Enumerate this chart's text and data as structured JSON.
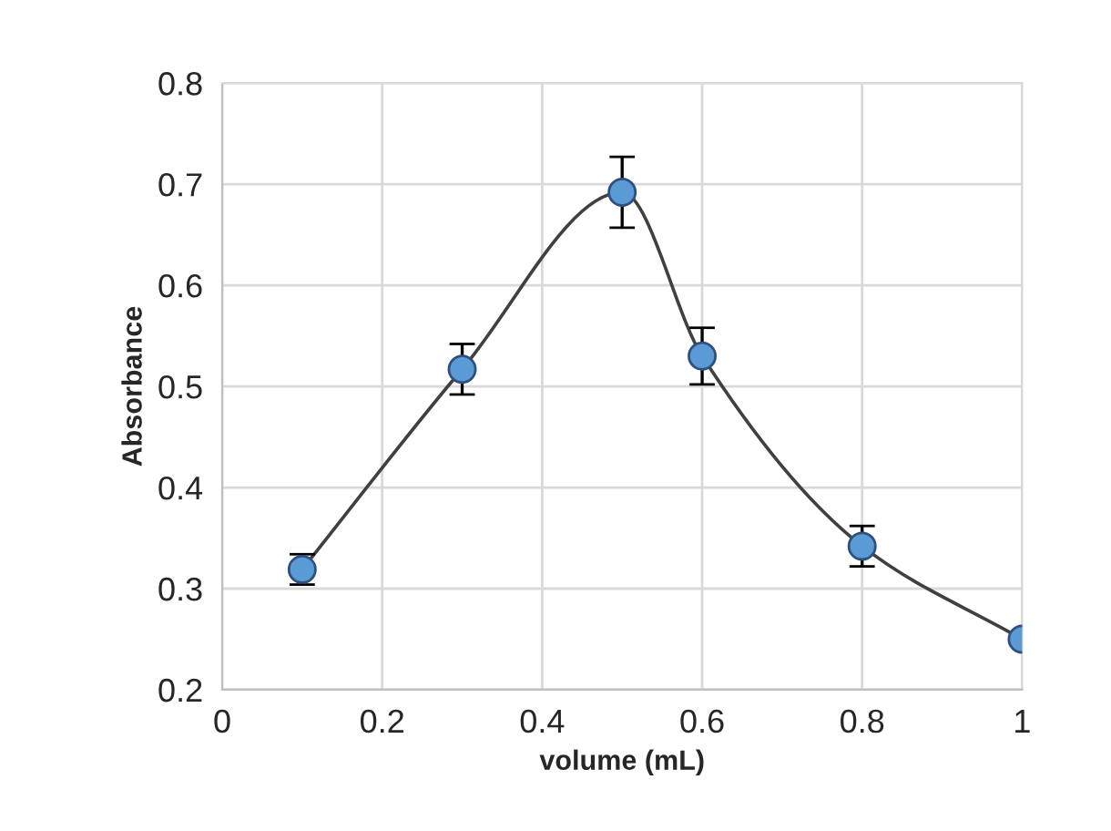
{
  "chart_data": {
    "type": "line",
    "xlabel": "volume (mL)",
    "ylabel": "Absorbance",
    "x": [
      0.1,
      0.3,
      0.5,
      0.6,
      0.8,
      1.0
    ],
    "series": [
      {
        "color": "#5b9bd5",
        "values": [
          0.319,
          0.517,
          0.692,
          0.53,
          0.342,
          0.25
        ],
        "errors": [
          0.015,
          0.025,
          0.035,
          0.028,
          0.02,
          null
        ]
      }
    ],
    "xlim": [
      0,
      1
    ],
    "xticks": [
      0,
      0.2,
      0.4,
      0.6,
      0.8,
      1
    ],
    "ylim": [
      0.2,
      0.8
    ],
    "yticks": [
      {
        "value": 0.2,
        "label": "0.2"
      },
      {
        "value": 0.3,
        "label": "0.3"
      },
      {
        "value": 0.4,
        "label": "0.4"
      },
      {
        "value": 0.5,
        "label": "0.5"
      },
      {
        "value": 0.6,
        "label": "0.6"
      },
      {
        "value": 0.7,
        "label": "0.7"
      },
      {
        "value": 0.8,
        "label": "0.8"
      }
    ],
    "grid": true,
    "marker": "circle",
    "line_style": "solid"
  }
}
